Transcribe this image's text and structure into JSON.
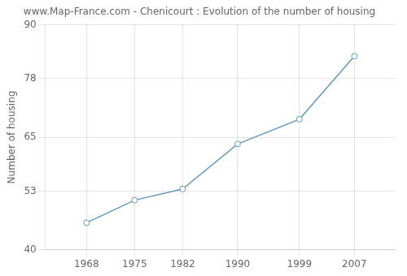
{
  "chart_data": {
    "type": "line",
    "title": "www.Map-France.com - Chenicourt : Evolution of the number of housing",
    "ylabel": "Number of housing",
    "x": [
      1968,
      1975,
      1982,
      1990,
      1999,
      2007
    ],
    "values": [
      46,
      51,
      53.5,
      63.5,
      69,
      83
    ],
    "xlim": [
      1962,
      2013
    ],
    "xticks": [
      1968,
      1975,
      1982,
      1990,
      1999,
      2007
    ],
    "ylim": [
      40,
      90
    ],
    "yticks": [
      40,
      53,
      65,
      78,
      90
    ],
    "grid": true,
    "color": "#6699bb",
    "marker": "circle"
  }
}
